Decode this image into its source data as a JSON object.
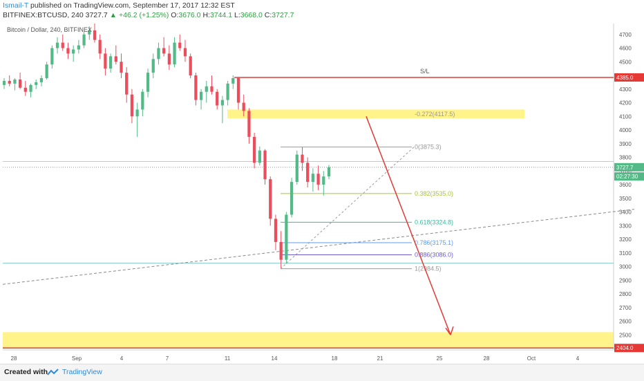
{
  "header": {
    "author": "Ismail-T",
    "published": " published on TradingView.com, September 17, 2017 12:32 EST",
    "symbol": "BITFINEX:BTCUSD, 240",
    "price": "3727.7",
    "change": "▲ +46.2 (+1.25%)",
    "o_label": "O:",
    "o": "3676.0",
    "h_label": "H:",
    "h": "3744.1",
    "l_label": "L:",
    "l": "3668.0",
    "c_label": "C:",
    "c": "3727.7"
  },
  "footer": {
    "created": "Created with",
    "brand": "TradingView"
  },
  "colors": {
    "up": "#53b987",
    "down": "#eb4d5c",
    "fib_gray": "#999999",
    "fib382": "#a6c436",
    "fib618": "#2ebd9f",
    "fib786": "#5b9cf6",
    "fib886": "#6a5acd",
    "resistance": "#e53935",
    "zone": "#ffeb3b",
    "arrow": "#e53935"
  },
  "chart_data": {
    "type": "candlestick",
    "title": "Bitcoin / Dollar, 240, BITFINEX",
    "y_range": [
      2390,
      4780
    ],
    "yticks": [
      2500,
      2600,
      2700,
      2800,
      2900,
      3000,
      3100,
      3200,
      3300,
      3400,
      3500,
      3600,
      3700,
      3800,
      3900,
      4000,
      4100,
      4200,
      4300,
      4400,
      4500,
      4600,
      4700
    ],
    "x_labels": [
      "28",
      "Sep",
      "4",
      "7",
      "11",
      "14",
      "18",
      "21",
      "25",
      "28",
      "Oct",
      "4"
    ],
    "price_labels": [
      {
        "text": "4385.0",
        "value": 4385,
        "color": "#e53935"
      },
      {
        "text": "3727.7",
        "value": 3727.7,
        "color": "#53b987"
      },
      {
        "text": "02:27:30",
        "value": 3660,
        "color": "#53b987"
      },
      {
        "text": "2404.0",
        "value": 2404,
        "color": "#e53935"
      }
    ],
    "annotations": [
      {
        "text": "S/L",
        "value": 4385
      },
      {
        "text": "-0.272(4117.5)",
        "value": 4117.5
      },
      {
        "text": "0(3875.3)",
        "value": 3875.3
      },
      {
        "text": "0.382(3535.0)",
        "value": 3535
      },
      {
        "text": "0.618(3324.8)",
        "value": 3324.8
      },
      {
        "text": "0.786(3175.1)",
        "value": 3175.1
      },
      {
        "text": "0.886(3086.0)",
        "value": 3086
      },
      {
        "text": "1(2984.5)",
        "value": 2984.5
      }
    ],
    "levels": [
      {
        "name": "stop-loss",
        "value": 4385
      },
      {
        "name": "support-line",
        "value": 3025
      },
      {
        "name": "current-price",
        "value": 3727.7
      },
      {
        "name": "resistance-gray",
        "value": 3770
      }
    ],
    "zones": [
      {
        "name": "upper-zone",
        "from": 4085,
        "to": 4150
      },
      {
        "name": "lower-zone",
        "from": 2404,
        "to": 2520
      }
    ],
    "target_arrow": {
      "from": 4100,
      "to": 2500
    },
    "candles": [
      [
        4330,
        4380,
        4300,
        4360
      ],
      [
        4360,
        4400,
        4320,
        4340
      ],
      [
        4340,
        4380,
        4290,
        4370
      ],
      [
        4370,
        4420,
        4300,
        4310
      ],
      [
        4310,
        4360,
        4250,
        4280
      ],
      [
        4280,
        4340,
        4240,
        4330
      ],
      [
        4330,
        4370,
        4300,
        4350
      ],
      [
        4350,
        4400,
        4320,
        4380
      ],
      [
        4380,
        4500,
        4370,
        4480
      ],
      [
        4480,
        4620,
        4450,
        4600
      ],
      [
        4600,
        4680,
        4560,
        4640
      ],
      [
        4640,
        4700,
        4580,
        4600
      ],
      [
        4600,
        4640,
        4520,
        4560
      ],
      [
        4560,
        4620,
        4500,
        4590
      ],
      [
        4590,
        4660,
        4560,
        4620
      ],
      [
        4620,
        4720,
        4600,
        4700
      ],
      [
        4700,
        4760,
        4660,
        4730
      ],
      [
        4730,
        4780,
        4640,
        4660
      ],
      [
        4660,
        4700,
        4520,
        4560
      ],
      [
        4560,
        4600,
        4400,
        4450
      ],
      [
        4450,
        4560,
        4420,
        4540
      ],
      [
        4540,
        4620,
        4480,
        4500
      ],
      [
        4500,
        4560,
        4380,
        4420
      ],
      [
        4420,
        4460,
        4200,
        4260
      ],
      [
        4260,
        4300,
        4050,
        4100
      ],
      [
        4100,
        4200,
        3950,
        4150
      ],
      [
        4150,
        4300,
        4100,
        4280
      ],
      [
        4280,
        4450,
        4240,
        4420
      ],
      [
        4420,
        4560,
        4380,
        4520
      ],
      [
        4520,
        4640,
        4480,
        4600
      ],
      [
        4600,
        4680,
        4540,
        4560
      ],
      [
        4560,
        4620,
        4440,
        4480
      ],
      [
        4480,
        4680,
        4460,
        4640
      ],
      [
        4640,
        4700,
        4580,
        4600
      ],
      [
        4600,
        4660,
        4500,
        4540
      ],
      [
        4540,
        4560,
        4380,
        4400
      ],
      [
        4400,
        4420,
        4180,
        4220
      ],
      [
        4220,
        4300,
        4150,
        4280
      ],
      [
        4280,
        4360,
        4200,
        4320
      ],
      [
        4320,
        4400,
        4260,
        4280
      ],
      [
        4280,
        4300,
        4150,
        4180
      ],
      [
        4180,
        4250,
        4050,
        4220
      ],
      [
        4220,
        4360,
        4180,
        4340
      ],
      [
        4340,
        4400,
        4300,
        4380
      ],
      [
        4380,
        4390,
        4150,
        4200
      ],
      [
        4200,
        4260,
        4100,
        4140
      ],
      [
        4140,
        4160,
        3900,
        3950
      ],
      [
        3950,
        3980,
        3720,
        3760
      ],
      [
        3760,
        3880,
        3740,
        3850
      ],
      [
        3850,
        3860,
        3600,
        3640
      ],
      [
        3640,
        3660,
        3300,
        3350
      ],
      [
        3350,
        3380,
        3120,
        3180
      ],
      [
        3180,
        3260,
        2990,
        3050
      ],
      [
        3050,
        3400,
        3020,
        3380
      ],
      [
        3380,
        3650,
        3360,
        3620
      ],
      [
        3620,
        3850,
        3600,
        3820
      ],
      [
        3820,
        3875,
        3700,
        3760
      ],
      [
        3760,
        3800,
        3580,
        3620
      ],
      [
        3620,
        3720,
        3550,
        3680
      ],
      [
        3680,
        3740,
        3560,
        3600
      ],
      [
        3600,
        3700,
        3520,
        3660
      ],
      [
        3660,
        3744,
        3640,
        3727.7
      ]
    ]
  }
}
